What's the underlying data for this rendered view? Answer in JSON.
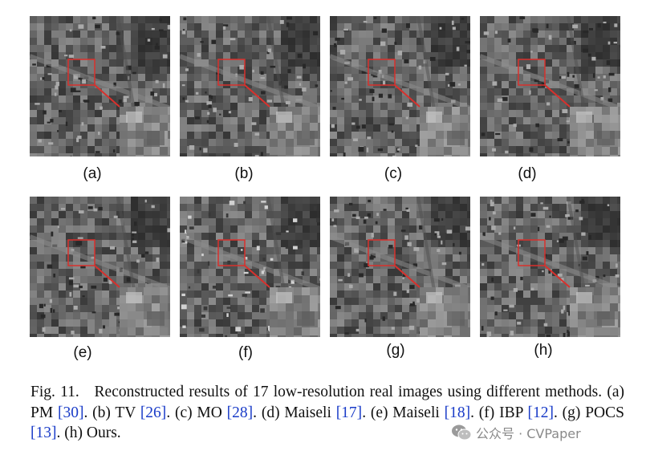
{
  "figure": {
    "panels": [
      {
        "id": "a",
        "label": "(a)"
      },
      {
        "id": "b",
        "label": "(b)"
      },
      {
        "id": "c",
        "label": "(c)"
      },
      {
        "id": "d",
        "label": "(d)"
      },
      {
        "id": "e",
        "label": "(e)"
      },
      {
        "id": "f",
        "label": "(f)"
      },
      {
        "id": "g",
        "label": "(g)"
      },
      {
        "id": "h",
        "label": "(h)"
      }
    ],
    "colors": {
      "zoom_box": "#d9302c",
      "caption_ref": "#1a3cc8"
    }
  },
  "caption": {
    "prefix": "Fig. 11.",
    "t1": "Reconstructed results of 17 low-resolution real images using different methods. (a) PM ",
    "r1": "[30]",
    "t2": ". (b) TV ",
    "r2": "[26]",
    "t3": ". (c) MO ",
    "r3": "[28]",
    "t4": ". (d) Maiseli ",
    "r4": "[17]",
    "t5": ". (e) Maiseli ",
    "r5": "[18]",
    "t6": ". (f) IBP ",
    "r6": "[12]",
    "t7": ". (g) POCS ",
    "r7": "[13]",
    "t8": ". (h) Ours."
  },
  "watermark": {
    "text": "公众号 · CVPaper",
    "icon": "wechat-icon"
  }
}
